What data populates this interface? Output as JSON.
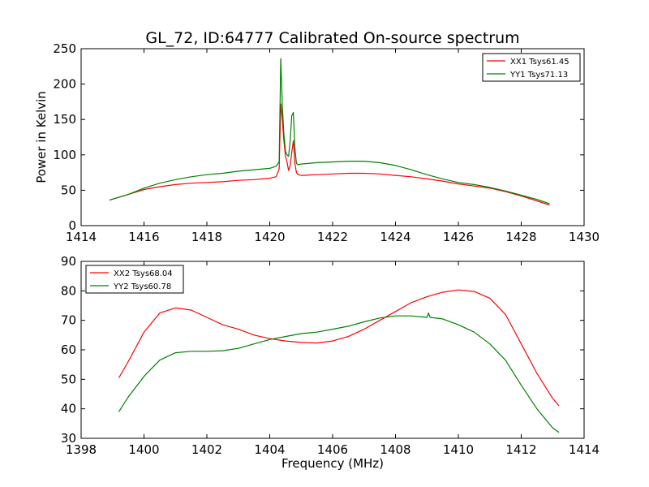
{
  "title": "GL_72, ID:64777 Calibrated On-source spectrum",
  "chart_data": [
    {
      "type": "line",
      "ylabel": "Power in Kelvin",
      "xlabel": "",
      "xlim": [
        1414,
        1430
      ],
      "ylim": [
        0,
        250
      ],
      "xticks": [
        "1414",
        "1416",
        "1418",
        "1420",
        "1422",
        "1424",
        "1426",
        "1428",
        "1430"
      ],
      "yticks": [
        "0",
        "50",
        "100",
        "150",
        "200",
        "250"
      ],
      "legend_position": "top-right",
      "grid": false,
      "series": [
        {
          "name": "XX1 Tsys61.45",
          "color": "#ff0000",
          "x": [
            1414.9,
            1415.5,
            1416.0,
            1416.5,
            1417.0,
            1417.5,
            1418.0,
            1418.5,
            1419.0,
            1419.5,
            1420.0,
            1420.2,
            1420.3,
            1420.35,
            1420.4,
            1420.45,
            1420.5,
            1420.55,
            1420.6,
            1420.65,
            1420.7,
            1420.75,
            1420.8,
            1420.85,
            1420.9,
            1421.0,
            1421.5,
            1422.0,
            1422.5,
            1423.0,
            1423.5,
            1424.0,
            1424.5,
            1425.0,
            1425.5,
            1426.0,
            1426.5,
            1427.0,
            1427.5,
            1428.0,
            1428.5,
            1428.9
          ],
          "y": [
            36,
            44,
            51,
            55,
            58,
            60,
            61,
            62,
            64,
            65,
            67,
            69,
            80,
            172,
            150,
            120,
            98,
            90,
            78,
            85,
            103,
            120,
            88,
            75,
            72,
            71,
            72,
            73,
            74,
            74,
            73,
            71,
            69,
            66,
            63,
            59,
            56,
            53,
            48,
            42,
            35,
            29
          ]
        },
        {
          "name": "YY1 Tsys71.13",
          "color": "#008000",
          "x": [
            1414.9,
            1415.5,
            1416.0,
            1416.5,
            1417.0,
            1417.5,
            1418.0,
            1418.5,
            1419.0,
            1419.5,
            1420.0,
            1420.2,
            1420.3,
            1420.35,
            1420.4,
            1420.45,
            1420.5,
            1420.55,
            1420.6,
            1420.65,
            1420.7,
            1420.75,
            1420.8,
            1420.85,
            1420.9,
            1421.0,
            1421.5,
            1422.0,
            1422.5,
            1423.0,
            1423.5,
            1424.0,
            1424.5,
            1425.0,
            1425.5,
            1426.0,
            1426.5,
            1427.0,
            1427.5,
            1428.0,
            1428.5,
            1428.9
          ],
          "y": [
            36,
            44,
            53,
            60,
            65,
            69,
            72,
            74,
            77,
            79,
            81,
            84,
            90,
            236,
            170,
            130,
            105,
            100,
            98,
            120,
            155,
            160,
            110,
            88,
            86,
            87,
            89,
            90,
            91,
            91,
            89,
            85,
            79,
            72,
            66,
            61,
            58,
            54,
            49,
            43,
            37,
            31
          ]
        }
      ]
    },
    {
      "type": "line",
      "xlabel": "Frequency (MHz)",
      "ylabel": "",
      "xlim": [
        1398,
        1414
      ],
      "ylim": [
        30,
        90
      ],
      "xticks": [
        "1398",
        "1400",
        "1402",
        "1404",
        "1406",
        "1408",
        "1410",
        "1412",
        "1414"
      ],
      "yticks": [
        "30",
        "40",
        "50",
        "60",
        "70",
        "80",
        "90"
      ],
      "legend_position": "top-left",
      "grid": false,
      "series": [
        {
          "name": "XX2 Tsys68.04",
          "color": "#ff0000",
          "x": [
            1399.2,
            1399.5,
            1400.0,
            1400.5,
            1401.0,
            1401.5,
            1402.0,
            1402.5,
            1403.0,
            1403.5,
            1404.0,
            1404.5,
            1405.0,
            1405.5,
            1406.0,
            1406.5,
            1407.0,
            1407.5,
            1408.0,
            1408.5,
            1409.0,
            1409.5,
            1410.0,
            1410.5,
            1411.0,
            1411.5,
            1412.0,
            1412.5,
            1413.0,
            1413.2
          ],
          "y": [
            50.5,
            56,
            66,
            72.5,
            74.2,
            73.5,
            71,
            68.5,
            67,
            65,
            63.8,
            63,
            62.5,
            62.3,
            63,
            64.5,
            67,
            70,
            73,
            76,
            78,
            79.5,
            80.3,
            79.8,
            77.5,
            72,
            62,
            52,
            43.5,
            41
          ]
        },
        {
          "name": "YY2 Tsys60.78",
          "color": "#008000",
          "x": [
            1399.2,
            1399.5,
            1400.0,
            1400.5,
            1401.0,
            1401.5,
            1402.0,
            1402.5,
            1403.0,
            1403.5,
            1404.0,
            1404.5,
            1405.0,
            1405.5,
            1406.0,
            1406.5,
            1407.0,
            1407.5,
            1408.0,
            1408.5,
            1409.0,
            1409.05,
            1409.1,
            1409.5,
            1410.0,
            1410.5,
            1411.0,
            1411.5,
            1412.0,
            1412.5,
            1413.0,
            1413.2
          ],
          "y": [
            39,
            44,
            51,
            56.5,
            59,
            59.5,
            59.5,
            59.7,
            60.5,
            62,
            63.5,
            64.5,
            65.5,
            66,
            67,
            68,
            69.5,
            70.8,
            71.5,
            71.5,
            71,
            72.5,
            71,
            70.5,
            68.5,
            66,
            62,
            56.5,
            48,
            40,
            33.5,
            32
          ]
        }
      ]
    }
  ]
}
